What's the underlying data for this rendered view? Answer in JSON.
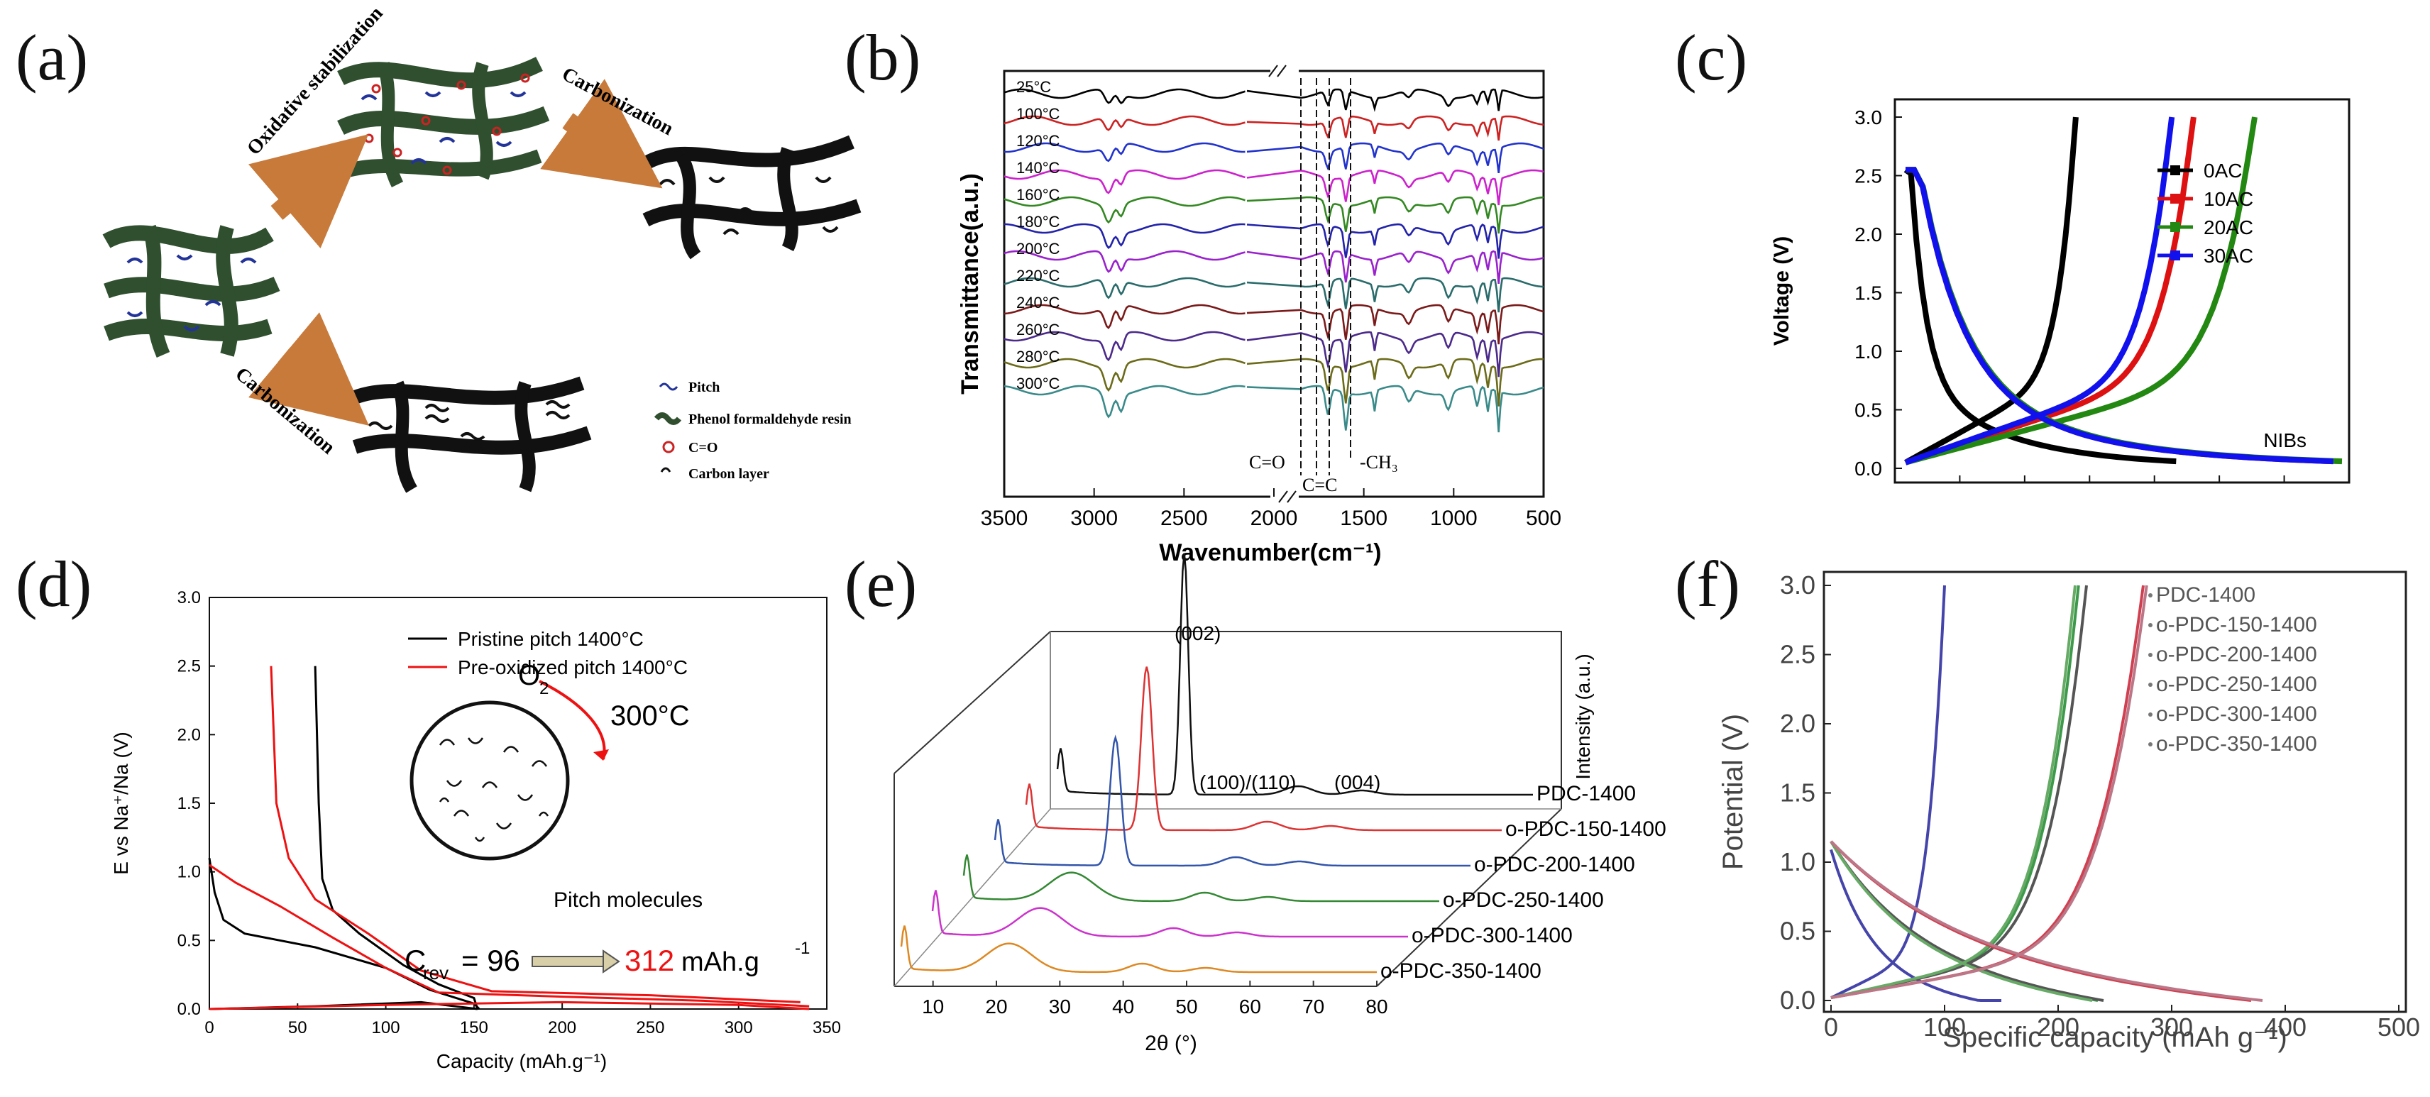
{
  "panel_labels": [
    "(a)",
    "(b)",
    "(c)",
    "(d)",
    "(e)",
    "(f)"
  ],
  "chart_data": [
    {
      "panel": "(a)",
      "type": "diagram",
      "arrows": [
        "Oxidative stabilization",
        "Carbonization",
        "Carbonization"
      ],
      "legend": [
        "Pitch",
        "Phenol formaldehyde resin",
        "C=O",
        "Carbon layer"
      ]
    },
    {
      "panel": "(b)",
      "type": "line",
      "title": "",
      "xlabel": "Wavenumber(cm⁻¹)",
      "ylabel": "Transmittance(a.u.)",
      "xlim": [
        3500,
        500
      ],
      "x_ticks": [
        "3500",
        "3000",
        "2500",
        "2000",
        "1500",
        "1000",
        "500"
      ],
      "axis_break": [
        2150,
        1850
      ],
      "series": [
        {
          "name": "25°C",
          "color": "#000000"
        },
        {
          "name": "100°C",
          "color": "#cc2222"
        },
        {
          "name": "120°C",
          "color": "#2233cc"
        },
        {
          "name": "140°C",
          "color": "#cc22cc"
        },
        {
          "name": "160°C",
          "color": "#338822"
        },
        {
          "name": "180°C",
          "color": "#2222aa"
        },
        {
          "name": "200°C",
          "color": "#9922cc"
        },
        {
          "name": "220°C",
          "color": "#2a6b6b"
        },
        {
          "name": "240°C",
          "color": "#7a1a1a"
        },
        {
          "name": "260°C",
          "color": "#4b2a8a"
        },
        {
          "name": "280°C",
          "color": "#6b6b1a"
        },
        {
          "name": "300°C",
          "color": "#3a8a8a"
        }
      ],
      "annotations": [
        "C=O",
        "C=C",
        "-CH₃"
      ]
    },
    {
      "panel": "(c)",
      "type": "line",
      "xlabel": "",
      "ylabel": "Voltage (V)",
      "ylim": [
        0,
        3.0
      ],
      "y_ticks": [
        "0.0",
        "0.5",
        "1.0",
        "1.5",
        "2.0",
        "2.5",
        "3.0"
      ],
      "series": [
        {
          "name": "0AC",
          "color": "#000000",
          "discharge_end": 0.62,
          "charge_end": 0.39
        },
        {
          "name": "10AC",
          "color": "#dd1111",
          "discharge_end": 0.98,
          "charge_end": 0.66
        },
        {
          "name": "20AC",
          "color": "#228811",
          "discharge_end": 1.0,
          "charge_end": 0.8
        },
        {
          "name": "30AC",
          "color": "#1111ee",
          "discharge_end": 0.98,
          "charge_end": 0.61
        }
      ],
      "annotation": "NIBs"
    },
    {
      "panel": "(d)",
      "type": "line",
      "xlabel": "Capacity (mAh.g⁻¹)",
      "ylabel": "E vs Na⁺/Na (V)",
      "xlim": [
        0,
        350
      ],
      "ylim": [
        0,
        3.0
      ],
      "x_ticks": [
        "0",
        "50",
        "100",
        "150",
        "200",
        "250",
        "300",
        "350"
      ],
      "y_ticks": [
        "0.0",
        "0.5",
        "1.0",
        "1.5",
        "2.0",
        "2.5",
        "3.0"
      ],
      "series": [
        {
          "name": "Pristine pitch 1400°C",
          "color": "#000000",
          "discharge": [
            [
              0,
              1.1
            ],
            [
              4,
              0.8
            ],
            [
              12,
              0.58
            ],
            [
              40,
              0.45
            ],
            [
              80,
              0.3
            ],
            [
              120,
              0.12
            ],
            [
              150,
              0.04
            ],
            [
              153,
              0.0
            ]
          ],
          "charge": [
            [
              0,
              0.0
            ],
            [
              40,
              0.02
            ],
            [
              90,
              0.05
            ],
            [
              120,
              0.12
            ],
            [
              150,
              0.04
            ],
            [
              60,
              0.7
            ],
            [
              60,
              2.5
            ]
          ]
        },
        {
          "name": "Pre-oxidized pitch 1400°C",
          "color": "#ee1111",
          "discharge": [
            [
              0,
              1.1
            ],
            [
              20,
              0.95
            ],
            [
              40,
              0.8
            ],
            [
              70,
              0.55
            ],
            [
              110,
              0.25
            ],
            [
              140,
              0.08
            ],
            [
              250,
              0.06
            ],
            [
              340,
              0.02
            ]
          ],
          "charge": [
            [
              0,
              0.0
            ],
            [
              150,
              0.05
            ],
            [
              250,
              0.1
            ],
            [
              300,
              0.09
            ],
            [
              335,
              0.06
            ]
          ]
        }
      ],
      "annotations": {
        "gas": "O",
        "gas_sub": "2",
        "temperature": "300°C",
        "circle_label": "Pitch molecules",
        "crev_prefix": "C",
        "crev_sub": "rev",
        "crev_value": "= 96",
        "crev_after": "312",
        "crev_unit": "mAh.g",
        "crev_unit_sup": "-1"
      }
    },
    {
      "panel": "(e)",
      "type": "line",
      "xlabel": "2θ (°)",
      "ylabel": "Intensity (a.u.)",
      "xlim": [
        5,
        80
      ],
      "x_ticks": [
        "10",
        "20",
        "30",
        "40",
        "50",
        "60",
        "70",
        "80"
      ],
      "series": [
        {
          "name": "PDC-1400",
          "color": "#111111",
          "peak_002": 25.5
        },
        {
          "name": "o-PDC-150-1400",
          "color": "#dd3333",
          "peak_002": 25.0
        },
        {
          "name": "o-PDC-200-1400",
          "color": "#3355aa",
          "peak_002": 24.5
        },
        {
          "name": "o-PDC-250-1400",
          "color": "#338833",
          "peak_002": 24.0
        },
        {
          "name": "o-PDC-300-1400",
          "color": "#cc33cc",
          "peak_002": 23.5
        },
        {
          "name": "o-PDC-350-1400",
          "color": "#dd8822",
          "peak_002": 23.0
        }
      ],
      "annotations": [
        "(002)",
        "(100)/(110)",
        "(004)"
      ]
    },
    {
      "panel": "(f)",
      "type": "line",
      "xlabel": "Specific capacity (mAh g⁻¹)",
      "ylabel": "Potential (V)",
      "xlim": [
        0,
        500
      ],
      "ylim": [
        0,
        3.0
      ],
      "x_ticks": [
        "0",
        "100",
        "200",
        "300",
        "400",
        "500"
      ],
      "y_ticks": [
        "0.0",
        "0.5",
        "1.0",
        "1.5",
        "2.0",
        "2.5",
        "3.0"
      ],
      "series": [
        {
          "name": "PDC-1400",
          "color": "#4444aa",
          "discharge_end": 150,
          "charge_end": 100
        },
        {
          "name": "o-PDC-150-1400",
          "color": "#3d9a4a",
          "discharge_end": 235,
          "charge_end": 218
        },
        {
          "name": "o-PDC-200-1400",
          "color": "#555555",
          "discharge_end": 240,
          "charge_end": 225
        },
        {
          "name": "o-PDC-250-1400",
          "color": "#66aa66",
          "discharge_end": 230,
          "charge_end": 215
        },
        {
          "name": "o-PDC-300-1400",
          "color": "#d04050",
          "discharge_end": 370,
          "charge_end": 275
        },
        {
          "name": "o-PDC-350-1400",
          "color": "#bb7788",
          "discharge_end": 380,
          "charge_end": 278
        }
      ]
    }
  ]
}
